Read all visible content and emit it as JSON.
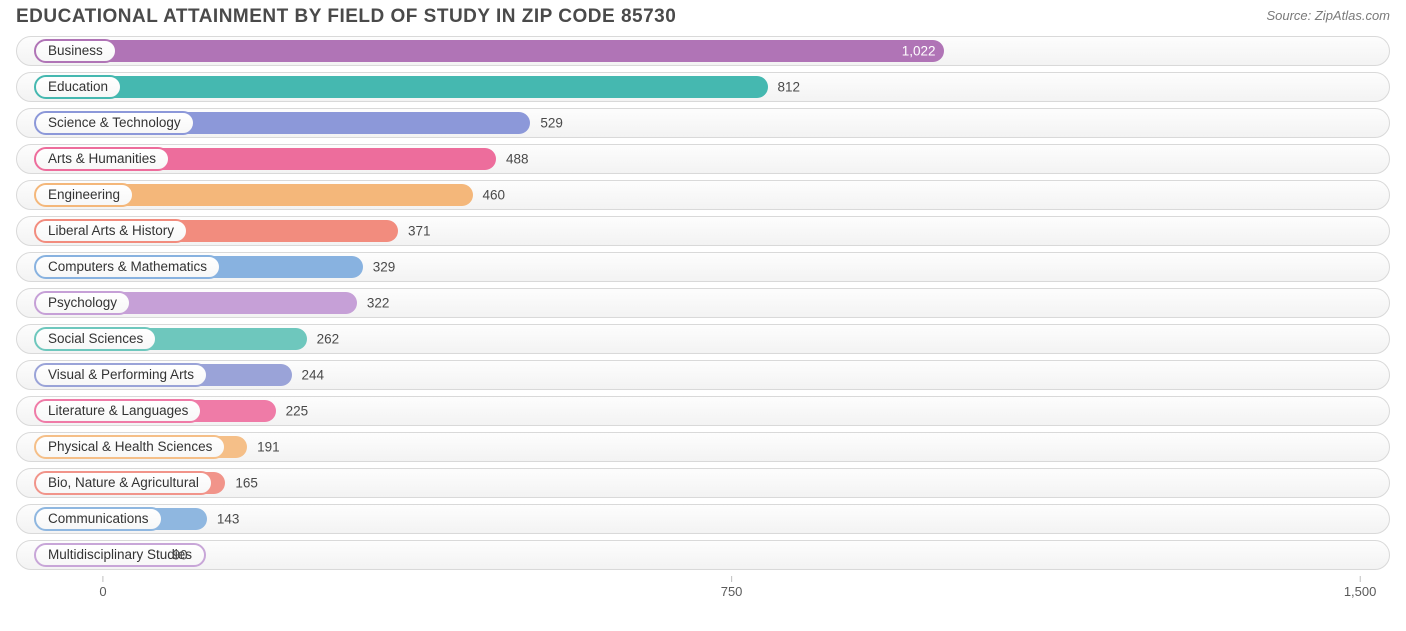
{
  "header": {
    "title": "EDUCATIONAL ATTAINMENT BY FIELD OF STUDY IN ZIP CODE 85730",
    "source": "Source: ZipAtlas.com"
  },
  "chart": {
    "type": "bar",
    "orientation": "horizontal",
    "background_color": "#ffffff",
    "track_border_color": "#d9d9d9",
    "track_gradient_top": "#fdfdfd",
    "track_gradient_bottom": "#f3f3f3",
    "label_text_color": "#333333",
    "value_text_color": "#4a4a4a",
    "value_text_color_inside": "#ffffff",
    "title_color": "#4a4a4a",
    "title_fontsize": 19,
    "label_fontsize": 13.5,
    "value_fontsize": 13.5,
    "xlim": [
      -80,
      1550
    ],
    "x_ticks": [
      {
        "value": 0,
        "label": "0"
      },
      {
        "value": 750,
        "label": "750"
      },
      {
        "value": 1500,
        "label": "1,500"
      }
    ],
    "bars": [
      {
        "label": "Business",
        "value": 1022,
        "display_value": "1,022",
        "color": "#b074b6",
        "value_inside": true
      },
      {
        "label": "Education",
        "value": 812,
        "display_value": "812",
        "color": "#45b8b0",
        "value_inside": false
      },
      {
        "label": "Science & Technology",
        "value": 529,
        "display_value": "529",
        "color": "#8c98d9",
        "value_inside": false
      },
      {
        "label": "Arts & Humanities",
        "value": 488,
        "display_value": "488",
        "color": "#ed6d9c",
        "value_inside": false
      },
      {
        "label": "Engineering",
        "value": 460,
        "display_value": "460",
        "color": "#f4b77a",
        "value_inside": false
      },
      {
        "label": "Liberal Arts & History",
        "value": 371,
        "display_value": "371",
        "color": "#f28c7e",
        "value_inside": false
      },
      {
        "label": "Computers & Mathematics",
        "value": 329,
        "display_value": "329",
        "color": "#88b2e0",
        "value_inside": false
      },
      {
        "label": "Psychology",
        "value": 322,
        "display_value": "322",
        "color": "#c6a0d7",
        "value_inside": false
      },
      {
        "label": "Social Sciences",
        "value": 262,
        "display_value": "262",
        "color": "#6ec7bd",
        "value_inside": false
      },
      {
        "label": "Visual & Performing Arts",
        "value": 244,
        "display_value": "244",
        "color": "#9aa3d8",
        "value_inside": false
      },
      {
        "label": "Literature & Languages",
        "value": 225,
        "display_value": "225",
        "color": "#ef7ba7",
        "value_inside": false
      },
      {
        "label": "Physical & Health Sciences",
        "value": 191,
        "display_value": "191",
        "color": "#f5bf88",
        "value_inside": false
      },
      {
        "label": "Bio, Nature & Agricultural",
        "value": 165,
        "display_value": "165",
        "color": "#f1948a",
        "value_inside": false
      },
      {
        "label": "Communications",
        "value": 143,
        "display_value": "143",
        "color": "#8fb7e0",
        "value_inside": false
      },
      {
        "label": "Multidisciplinary Studies",
        "value": 90,
        "display_value": "90",
        "color": "#c8a6d8",
        "value_inside": false
      }
    ]
  }
}
